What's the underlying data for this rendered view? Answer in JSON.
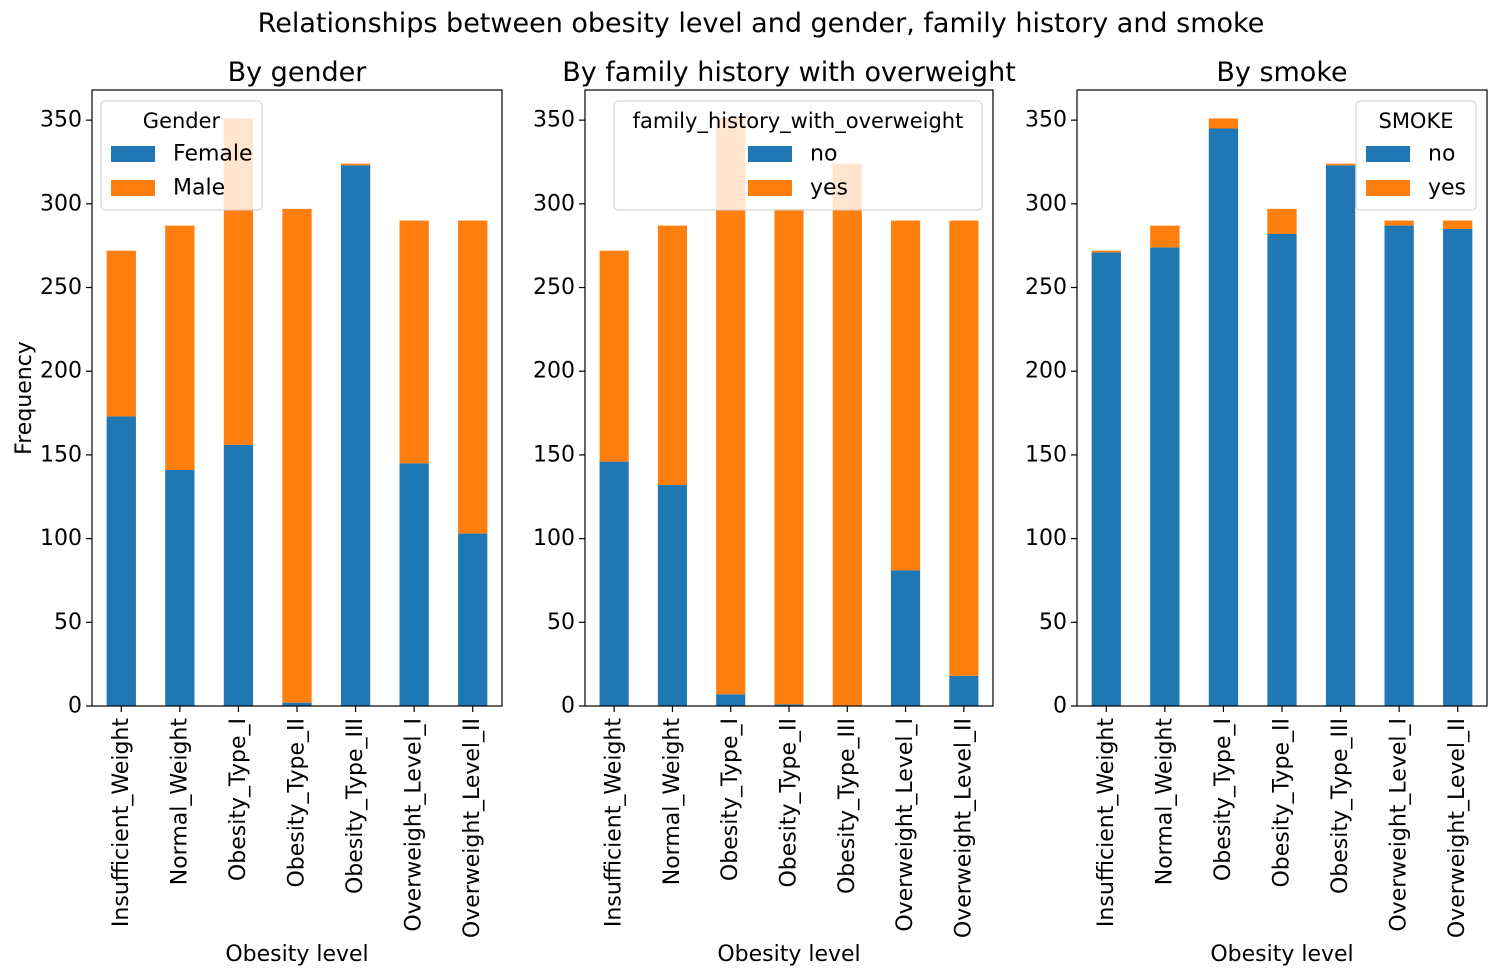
{
  "figure": {
    "suptitle": "Relationships between obesity level and gender, family history and smoke"
  },
  "colors": {
    "series_1": "#1f77b4",
    "series_2": "#ff7f0e",
    "axis": "#000000",
    "background": "#ffffff"
  },
  "chart_data": [
    {
      "type": "bar",
      "stacked": true,
      "title": "By gender",
      "xlabel": "Obesity level",
      "ylabel": "Frequency",
      "ylim": [
        0,
        368
      ],
      "yticks": [
        0,
        50,
        100,
        150,
        200,
        250,
        300,
        350
      ],
      "grid": false,
      "legend": {
        "title": "Gender",
        "position": "top-left"
      },
      "categories": [
        "Insufficient_Weight",
        "Normal_Weight",
        "Obesity_Type_I",
        "Obesity_Type_II",
        "Obesity_Type_III",
        "Overweight_Level_I",
        "Overweight_Level_II"
      ],
      "series": [
        {
          "name": "Female",
          "values": [
            173,
            141,
            156,
            2,
            323,
            145,
            103
          ]
        },
        {
          "name": "Male",
          "values": [
            99,
            146,
            195,
            295,
            1,
            145,
            187
          ]
        }
      ]
    },
    {
      "type": "bar",
      "stacked": true,
      "title": "By family history with overweight",
      "xlabel": "Obesity level",
      "ylabel": "",
      "ylim": [
        0,
        368
      ],
      "yticks": [
        0,
        50,
        100,
        150,
        200,
        250,
        300,
        350
      ],
      "grid": false,
      "legend": {
        "title": "family_history_with_overweight",
        "position": "top-right"
      },
      "categories": [
        "Insufficient_Weight",
        "Normal_Weight",
        "Obesity_Type_I",
        "Obesity_Type_II",
        "Obesity_Type_III",
        "Overweight_Level_I",
        "Overweight_Level_II"
      ],
      "series": [
        {
          "name": "no",
          "values": [
            146,
            132,
            7,
            1,
            0,
            81,
            18
          ]
        },
        {
          "name": "yes",
          "values": [
            126,
            155,
            344,
            296,
            324,
            209,
            272
          ]
        }
      ]
    },
    {
      "type": "bar",
      "stacked": true,
      "title": "By smoke",
      "xlabel": "Obesity level",
      "ylabel": "",
      "ylim": [
        0,
        368
      ],
      "yticks": [
        0,
        50,
        100,
        150,
        200,
        250,
        300,
        350
      ],
      "grid": false,
      "legend": {
        "title": "SMOKE",
        "position": "top-right"
      },
      "categories": [
        "Insufficient_Weight",
        "Normal_Weight",
        "Obesity_Type_I",
        "Obesity_Type_II",
        "Obesity_Type_III",
        "Overweight_Level_I",
        "Overweight_Level_II"
      ],
      "series": [
        {
          "name": "no",
          "values": [
            271,
            274,
            345,
            282,
            323,
            287,
            285
          ]
        },
        {
          "name": "yes",
          "values": [
            1,
            13,
            6,
            15,
            1,
            3,
            5
          ]
        }
      ]
    }
  ]
}
